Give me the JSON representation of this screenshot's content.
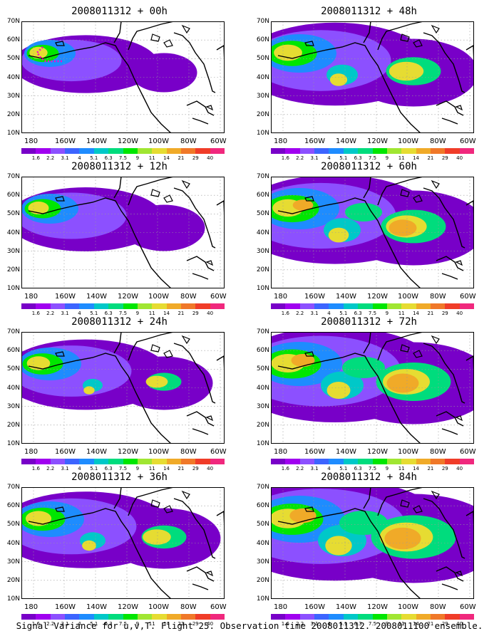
{
  "latitude_labels": [
    "70N",
    "60N",
    "50N",
    "40N",
    "30N",
    "20N",
    "10N"
  ],
  "longitude_labels": [
    "180",
    "160W",
    "140W",
    "120W",
    "100W",
    "80W",
    "60W"
  ],
  "colorbar": {
    "labels": [
      "1.6",
      "2.2",
      "3.1",
      "4",
      "5.1",
      "6.3",
      "7.5",
      "9",
      "11",
      "14",
      "21",
      "29",
      "40"
    ],
    "colors": [
      "#7800c8",
      "#a000f0",
      "#8c50ff",
      "#3c64ff",
      "#1e8cff",
      "#00c8c8",
      "#00dc7d",
      "#00e600",
      "#a0e632",
      "#e6dc32",
      "#f0aa28",
      "#f07828",
      "#f03c28",
      "#f0287d"
    ]
  },
  "panels": [
    {
      "title": "2008011312 + 00h",
      "intensity": 0.15
    },
    {
      "title": "2008011312 + 48h",
      "intensity": 0.55
    },
    {
      "title": "2008011312 + 12h",
      "intensity": 0.25
    },
    {
      "title": "2008011312 + 60h",
      "intensity": 0.65
    },
    {
      "title": "2008011312 + 24h",
      "intensity": 0.35
    },
    {
      "title": "2008011312 + 72h",
      "intensity": 0.75
    },
    {
      "title": "2008011312 + 36h",
      "intensity": 0.45
    },
    {
      "title": "2008011312 + 84h",
      "intensity": 0.85
    }
  ],
  "footer": "Signal Variance for u,v,T. Flight 25. Observation time 2008011312. 2008011100 ensemble."
}
